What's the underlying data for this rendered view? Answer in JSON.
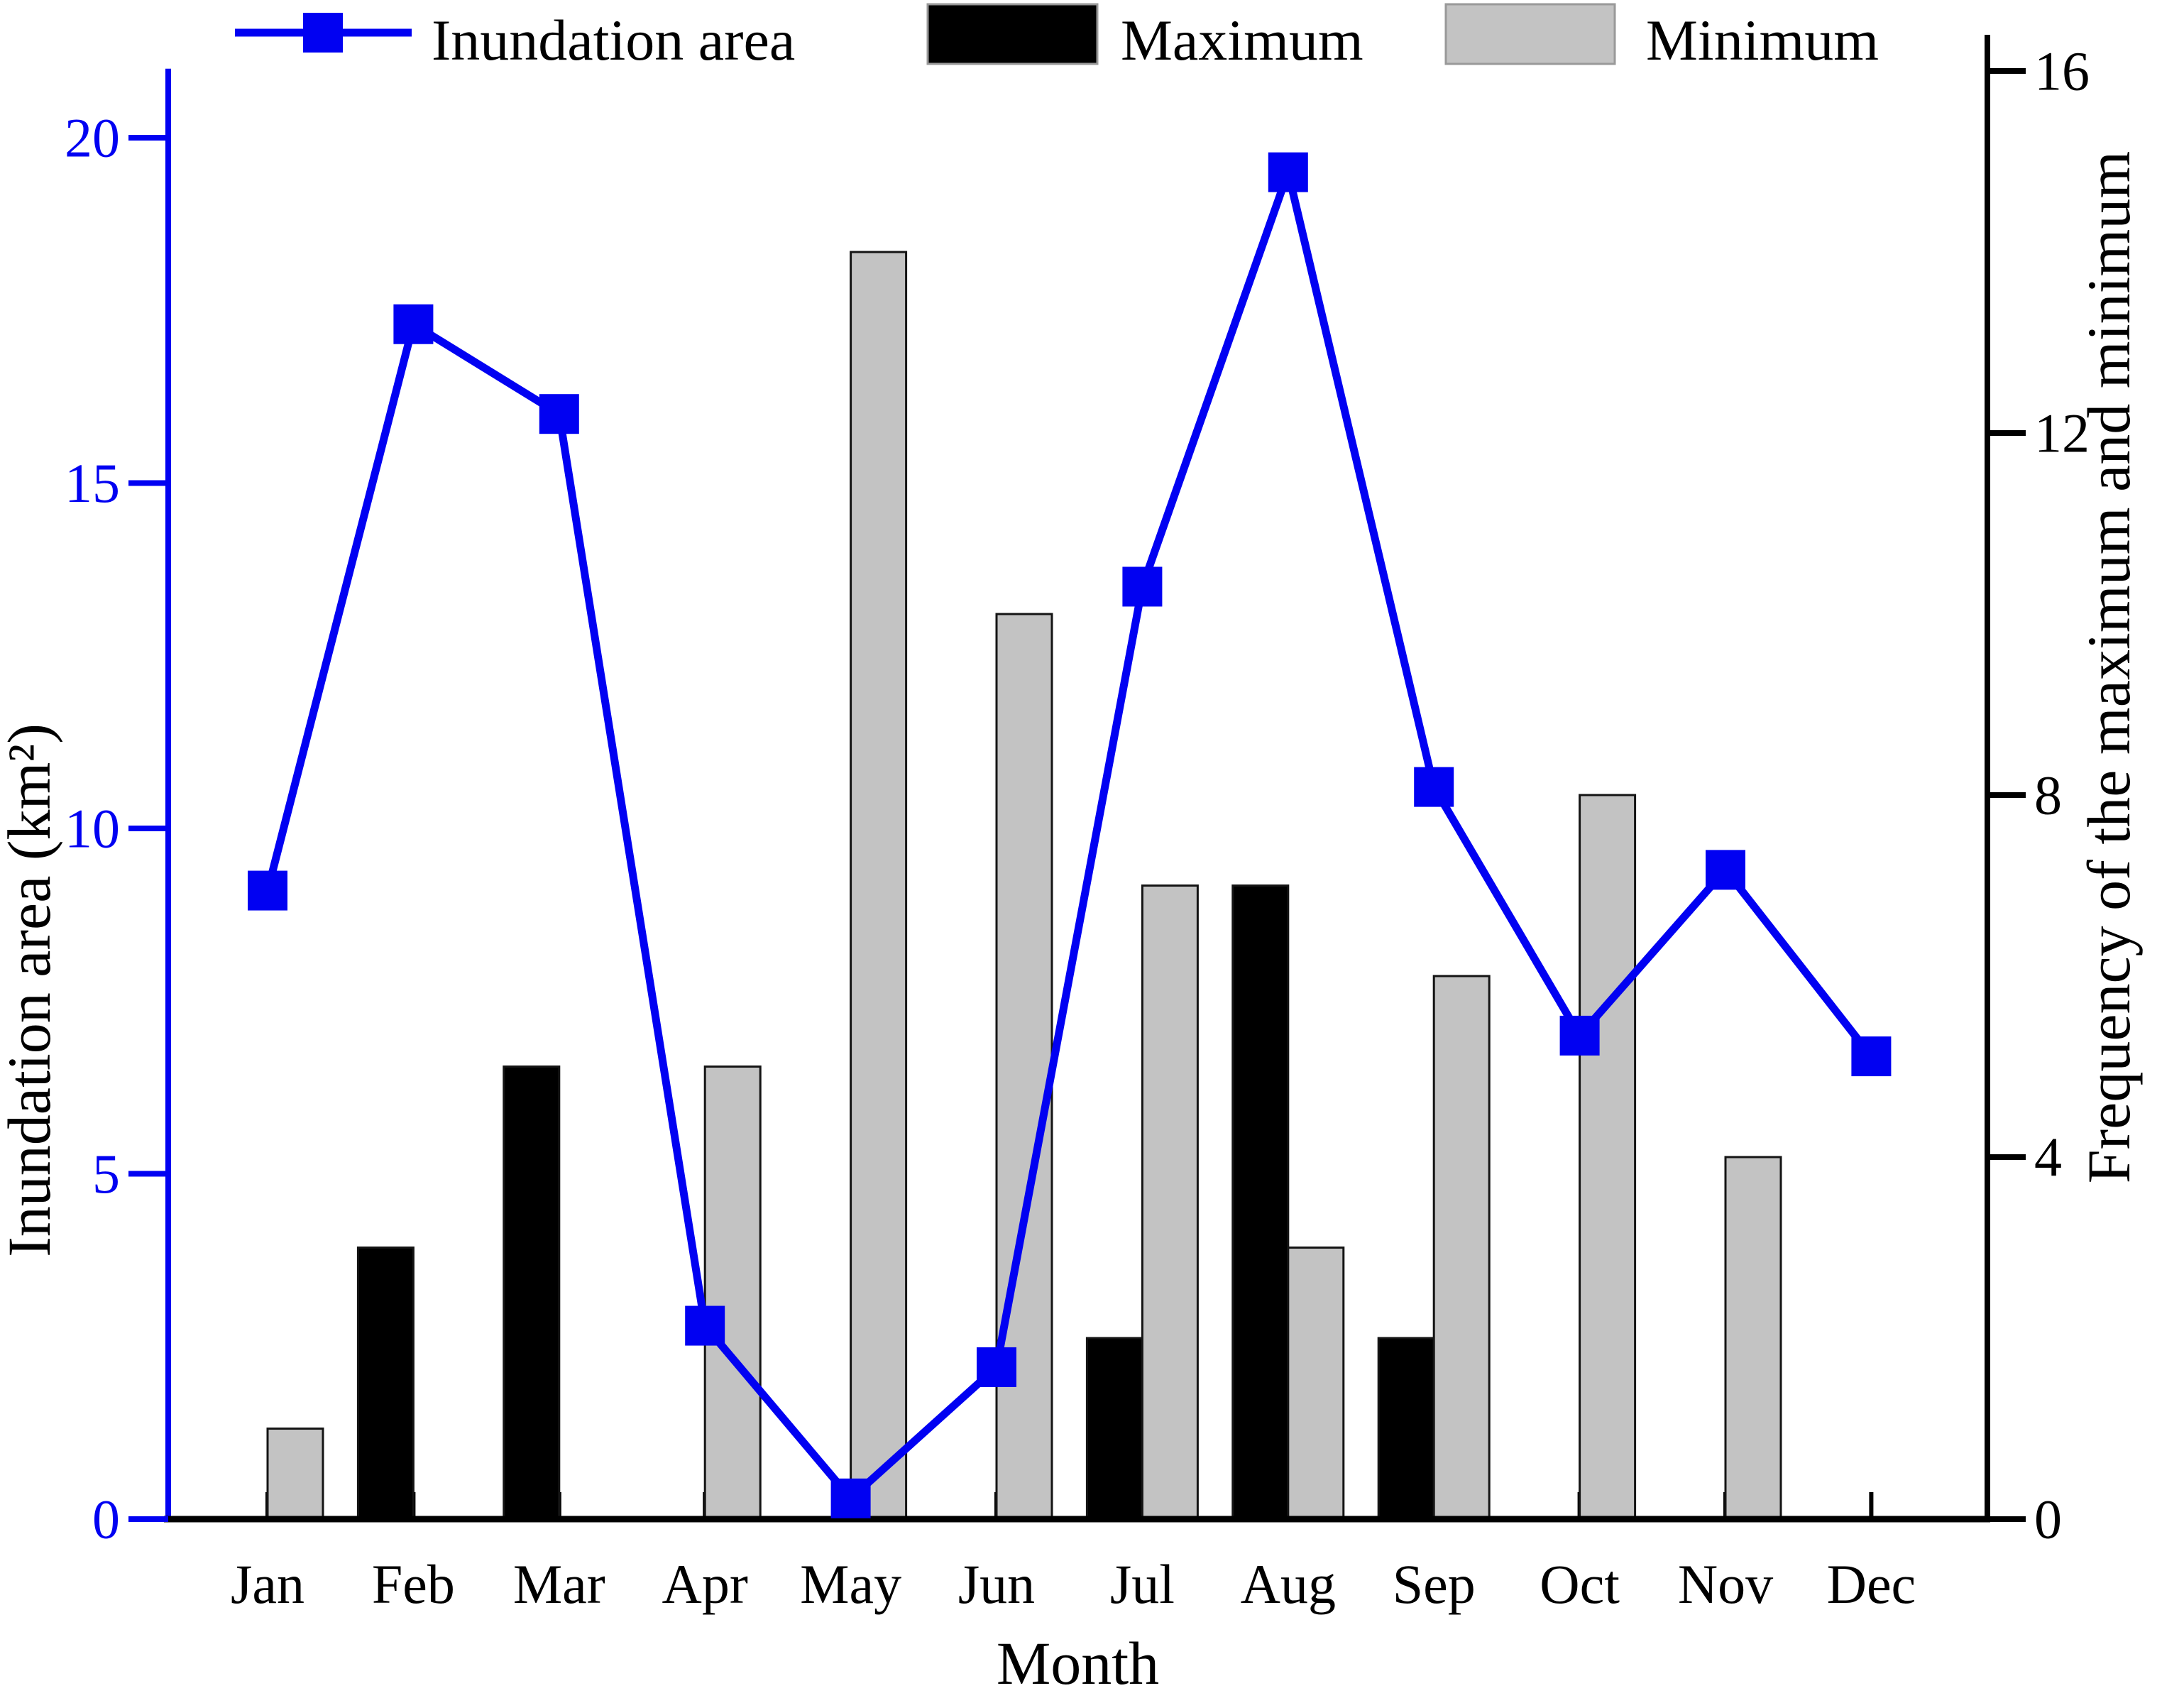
{
  "chart_data": {
    "type": "line+bar",
    "categories": [
      "Jan",
      "Feb",
      "Mar",
      "Apr",
      "May",
      "Jun",
      "Jul",
      "Aug",
      "Sep",
      "Oct",
      "Nov",
      "Dec"
    ],
    "series": [
      {
        "name": "Inundation area",
        "type": "line",
        "axis": "left",
        "marker": "square",
        "color": "#0101f2",
        "values": [
          9.1,
          17.3,
          16.0,
          2.8,
          0.3,
          2.2,
          13.5,
          19.5,
          10.6,
          7.0,
          9.4,
          6.7
        ]
      },
      {
        "name": "Maximum",
        "type": "bar",
        "axis": "right",
        "color": "#000000",
        "values": [
          0,
          3,
          5,
          0,
          0,
          0,
          2,
          7,
          2,
          0,
          0,
          0
        ]
      },
      {
        "name": "Minimum",
        "type": "bar",
        "axis": "right",
        "color": "#c3c3c3",
        "values": [
          1,
          0,
          0,
          5,
          14,
          10,
          7,
          3,
          6,
          8,
          4,
          0
        ]
      }
    ],
    "xlabel": "Month",
    "ylabel_left": "Inundation area (km²)",
    "ylabel_right": "Frequency of the maximum and minimum",
    "yticks_left": [
      0,
      5,
      10,
      15,
      20
    ],
    "yticks_right": [
      0,
      4,
      8,
      12,
      16
    ],
    "ylim_left": [
      0,
      21
    ],
    "ylim_right": [
      0,
      16.4
    ],
    "grid": false,
    "legend_position": "top"
  },
  "colors": {
    "line_blue": "#0101f2",
    "bar_black": "#000000",
    "bar_gray": "#c3c3c3",
    "bar_outline": "#141414",
    "left_axis": "#0101f2",
    "right_axis": "#000000"
  }
}
